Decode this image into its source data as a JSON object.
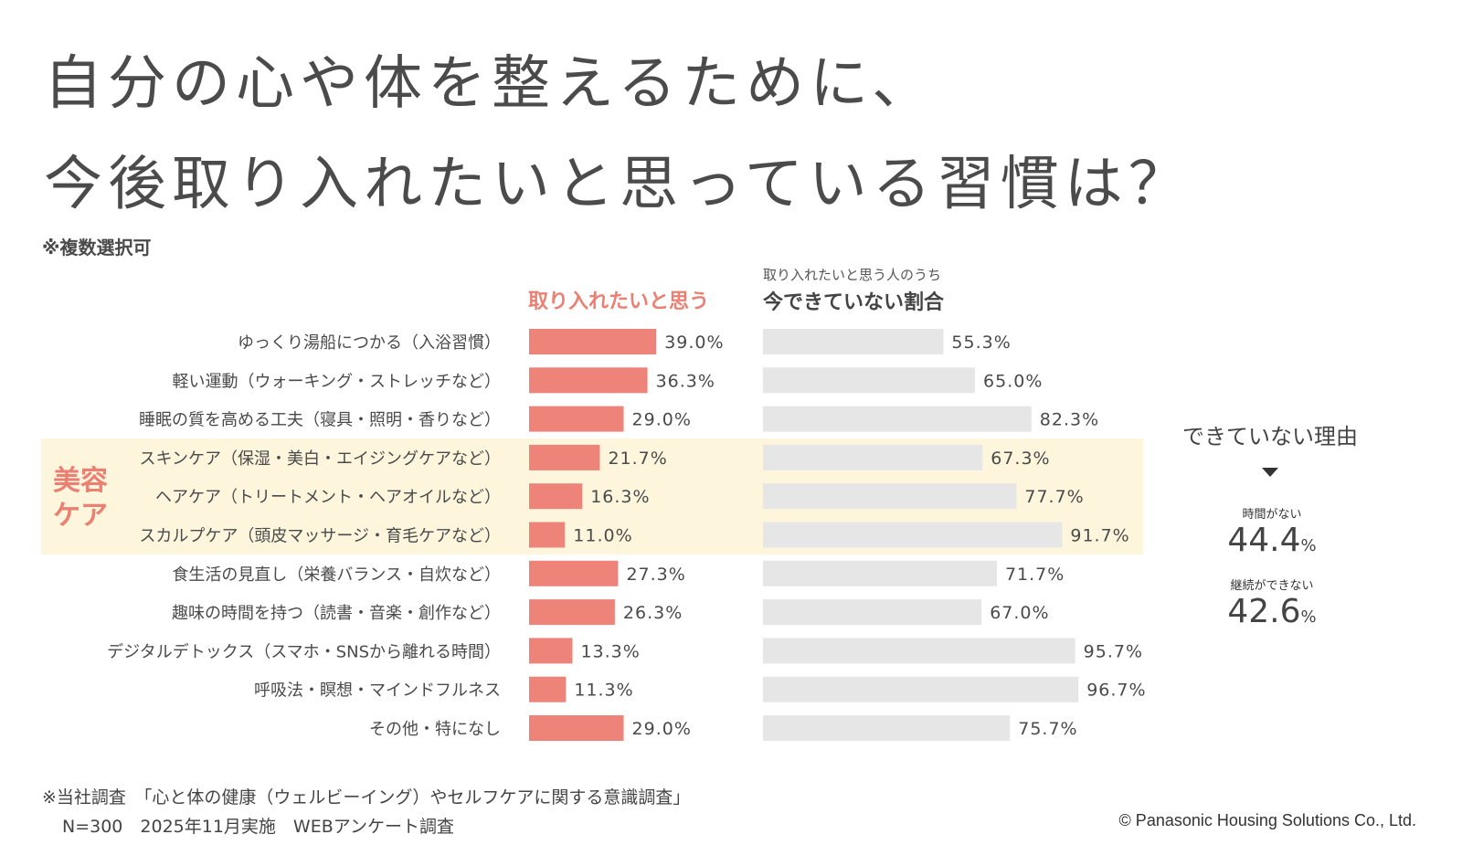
{
  "title_line1": "自分の心や体を整えるために、",
  "title_line2": "今後取り入れたいと思っている習慣は？",
  "note": "※複数選択可",
  "beauty_group_label_line1": "美容",
  "beauty_group_label_line2": "ケア",
  "colors": {
    "accent_bar": "#ee837a",
    "gray_bar": "#e6e6e6",
    "highlight_band": "#fdf6dd",
    "accent_text": "#ea7f72"
  },
  "chart_data": {
    "type": "bar",
    "orientation": "horizontal",
    "title": "今後取り入れたいと思っている習慣",
    "categories": [
      "ゆっくり湯船につかる（入浴習慣）",
      "軽い運動（ウォーキング・ストレッチなど）",
      "睡眠の質を高める工夫（寝具・照明・香りなど）",
      "スキンケア（保湿・美白・エイジングケアなど）",
      "ヘアケア（トリートメント・ヘアオイルなど）",
      "スカルプケア（頭皮マッサージ・育毛ケアなど）",
      "食生活の見直し（栄養バランス・自炊など）",
      "趣味の時間を持つ（読書・音楽・創作など）",
      "デジタルデトックス（スマホ・SNSから離れる時間）",
      "呼吸法・瞑想・マインドフルネス",
      "その他・特になし"
    ],
    "series": [
      {
        "name": "取り入れたいと思う",
        "values": [
          39.0,
          36.3,
          29.0,
          21.7,
          16.3,
          11.0,
          27.3,
          26.3,
          13.3,
          11.3,
          29.0
        ],
        "labels": [
          "39.0%",
          "36.3%",
          "29.0%",
          "21.7%",
          "16.3%",
          "11.0%",
          "27.3%",
          "26.3%",
          "13.3%",
          "11.3%",
          "29.0%"
        ]
      },
      {
        "name": "今できていない割合",
        "name_prefix": "取り入れたいと思う人のうち",
        "values": [
          55.3,
          65.0,
          82.3,
          67.3,
          77.7,
          91.7,
          71.7,
          67.0,
          95.7,
          96.7,
          75.7
        ],
        "labels": [
          "55.3%",
          "65.0%",
          "82.3%",
          "67.3%",
          "77.7%",
          "91.7%",
          "71.7%",
          "67.0%",
          "95.7%",
          "96.7%",
          "75.7%"
        ]
      }
    ],
    "highlighted_categories": [
      3,
      4,
      5
    ],
    "unit": "%"
  },
  "reasons": {
    "title": "できていない理由",
    "items": [
      {
        "label": "時間がない",
        "value": "44.4",
        "unit": "%"
      },
      {
        "label": "継続ができない",
        "value": "42.6",
        "unit": "%"
      }
    ]
  },
  "footer": {
    "line1": "※当社調査　「心と体の健康（ウェルビーイング）やセルフケアに関する意識調査」",
    "line2": "N=300　2025年11月実施　WEBアンケート調査",
    "copyright": "© Panasonic Housing Solutions Co., Ltd."
  }
}
